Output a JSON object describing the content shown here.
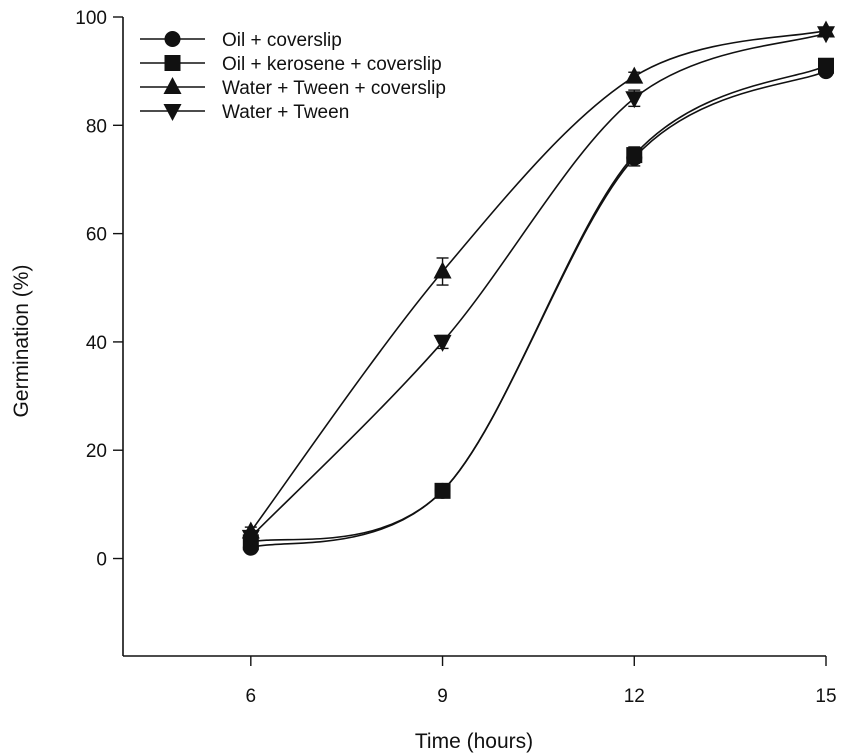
{
  "chart_data": {
    "type": "line",
    "title": "",
    "xlabel": "Time (hours)",
    "ylabel": "Germination (%)",
    "x": [
      6,
      9,
      12,
      15
    ],
    "xlim": [
      4,
      15
    ],
    "ylim": [
      -18,
      100
    ],
    "xticks": [
      "6",
      "9",
      "12",
      "15"
    ],
    "yticks": [
      "0",
      "20",
      "40",
      "60",
      "80",
      "100"
    ],
    "ytick_values": [
      0,
      20,
      40,
      60,
      80,
      100
    ],
    "grid": false,
    "legend_position": "top-left",
    "series": [
      {
        "name": "Oil + coverslip",
        "marker": "circle",
        "values": [
          2.0,
          12.5,
          74.0,
          90.0
        ],
        "errors": [
          0.6,
          0.8,
          1.5,
          0.8
        ]
      },
      {
        "name": "Oil + kerosene + coverslip",
        "marker": "square",
        "values": [
          3.0,
          12.5,
          74.5,
          91.0
        ],
        "errors": [
          0.6,
          0.8,
          1.5,
          0.8
        ]
      },
      {
        "name": "Water + Tween + coverslip",
        "marker": "triangle-up",
        "values": [
          5.0,
          53.0,
          89.0,
          97.5
        ],
        "errors": [
          0.8,
          2.5,
          0.8,
          0.5
        ]
      },
      {
        "name": "Water + Tween",
        "marker": "triangle-down",
        "values": [
          4.0,
          40.0,
          85.0,
          97.0
        ],
        "errors": [
          0.8,
          1.2,
          1.5,
          0.5
        ]
      }
    ],
    "colors": {
      "ink": "#111111",
      "background": "#ffffff"
    }
  }
}
